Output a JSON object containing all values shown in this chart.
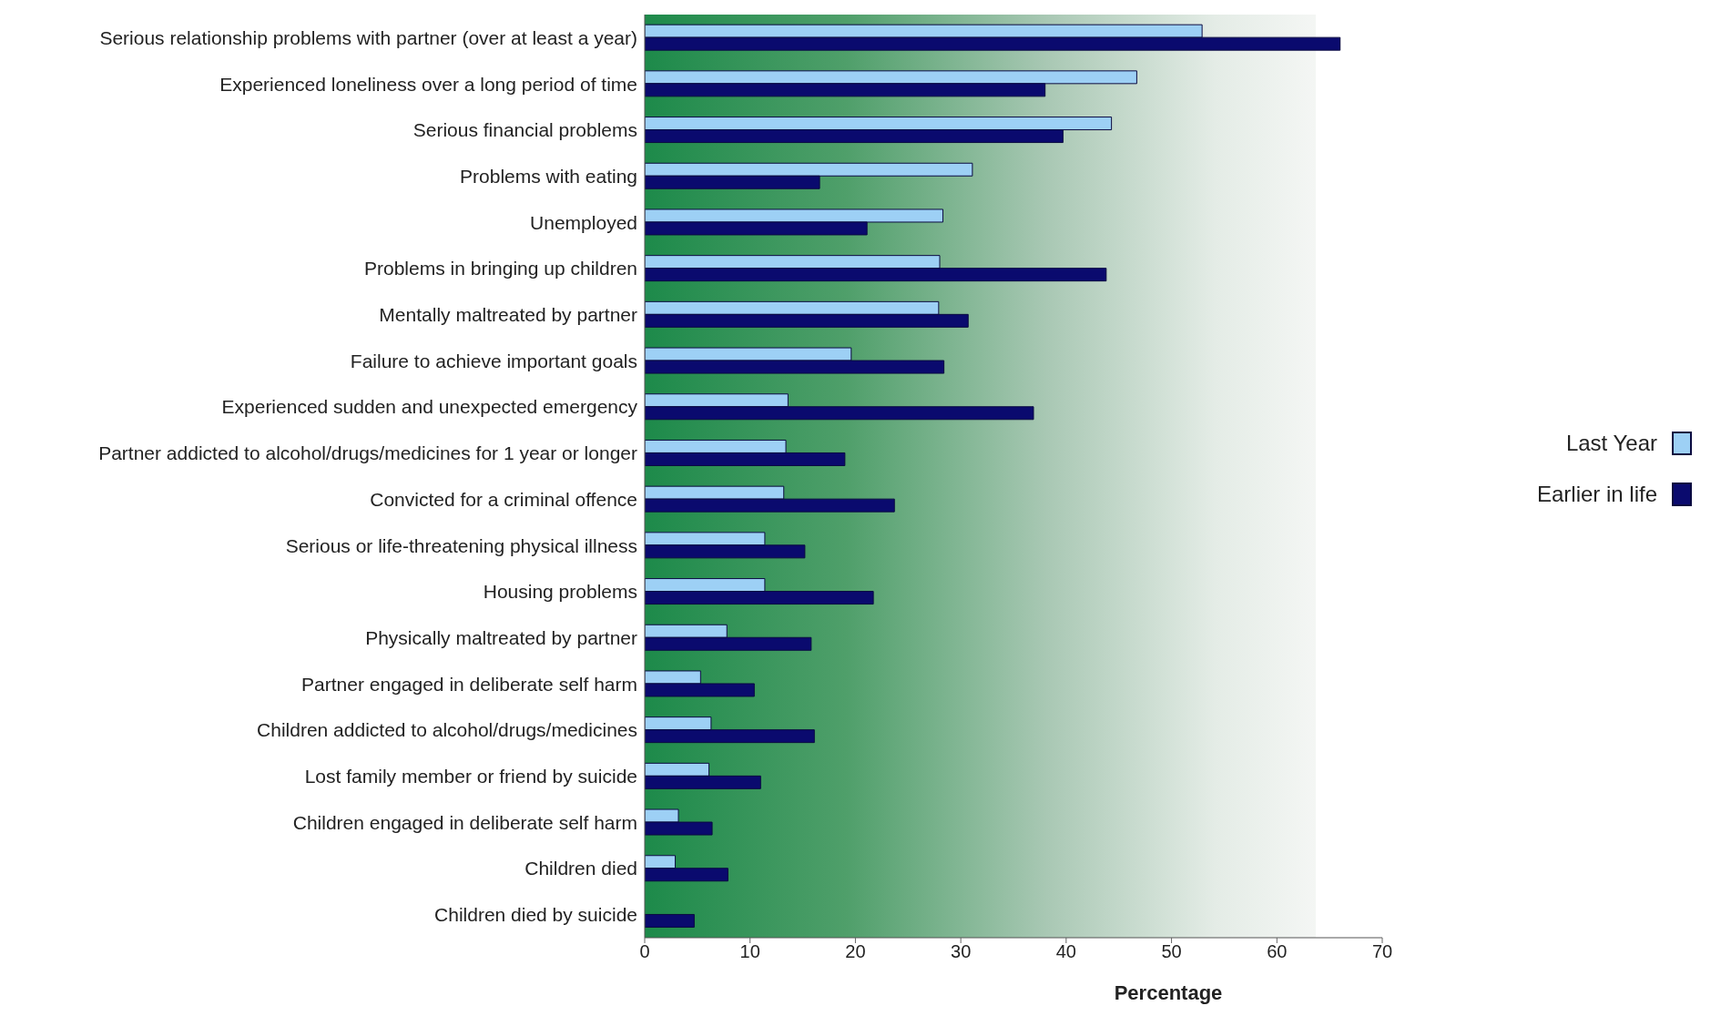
{
  "chart_data": {
    "type": "bar",
    "orientation": "horizontal",
    "xlabel": "Percentage",
    "categories": [
      "Serious relationship problems with partner (over at least a year)",
      "Experienced loneliness over a long period of time",
      "Serious financial problems",
      "Problems with eating",
      "Unemployed",
      "Problems in bringing up children",
      "Mentally maltreated by partner",
      "Failure to achieve important goals",
      "Experienced sudden and unexpected emergency",
      "Partner addicted to alcohol/drugs/medicines for 1 year or longer",
      "Convicted for a criminal offence",
      "Serious or life-threatening physical illness",
      "Housing problems",
      "Physically maltreated by partner",
      "Partner engaged in deliberate self harm",
      "Children addicted to alcohol/drugs/medicines",
      "Lost family member or friend by suicide",
      "Children engaged in deliberate self harm",
      "Children died",
      "Children died by suicide"
    ],
    "series": [
      {
        "name": "Last Year",
        "color": "#9dd0f5",
        "values": [
          52.9,
          46.7,
          44.3,
          31.1,
          28.3,
          28.0,
          27.9,
          19.6,
          13.6,
          13.4,
          13.2,
          11.4,
          11.4,
          7.8,
          5.3,
          6.3,
          6.1,
          3.2,
          2.9,
          null
        ]
      },
      {
        "name": "Earlier in life",
        "color": "#0a0a6e",
        "values": [
          66.0,
          38.0,
          39.7,
          16.6,
          21.1,
          43.8,
          30.7,
          28.4,
          36.9,
          19.0,
          23.7,
          15.2,
          21.7,
          15.8,
          10.4,
          16.1,
          11.0,
          6.4,
          7.9,
          4.7
        ]
      }
    ],
    "xlim": [
      0,
      70
    ],
    "xticks": [
      0,
      10,
      20,
      30,
      40,
      50,
      60,
      70
    ],
    "legend": "right"
  }
}
